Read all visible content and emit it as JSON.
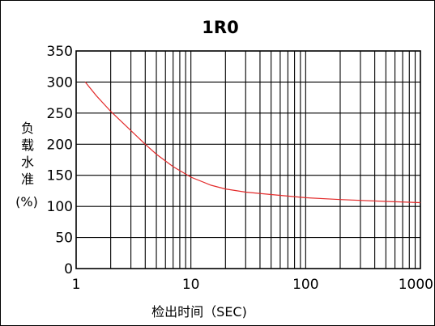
{
  "chart_data": {
    "type": "line",
    "title": "1R0",
    "xlabel": "检出时间（SEC)",
    "ylabel": [
      "负",
      "载",
      "水",
      "准",
      "(%)"
    ],
    "x_scale": "log",
    "xlim": [
      1,
      1000
    ],
    "ylim": [
      0,
      350
    ],
    "x_ticks": [
      {
        "value": 1,
        "label": "1"
      },
      {
        "value": 10,
        "label": "10"
      },
      {
        "value": 100,
        "label": "100"
      },
      {
        "value": 1000,
        "label": "1000"
      }
    ],
    "y_ticks": [
      {
        "value": 0,
        "label": "0"
      },
      {
        "value": 50,
        "label": "50"
      },
      {
        "value": 100,
        "label": "100"
      },
      {
        "value": 150,
        "label": "150"
      },
      {
        "value": 200,
        "label": "200"
      },
      {
        "value": 250,
        "label": "250"
      },
      {
        "value": 300,
        "label": "300"
      },
      {
        "value": 350,
        "label": "350"
      }
    ],
    "grid": true,
    "colors": {
      "curve": "#e32b2b",
      "grid": "#000000"
    },
    "series": [
      {
        "x": [
          1.2,
          1.5,
          2,
          3,
          4,
          5,
          7,
          10,
          15,
          20,
          30,
          50,
          100,
          200,
          500,
          1000
        ],
        "y": [
          300,
          278,
          253,
          222,
          200,
          184,
          164,
          147,
          134,
          128,
          123,
          119,
          114,
          111,
          108,
          106
        ]
      }
    ]
  }
}
